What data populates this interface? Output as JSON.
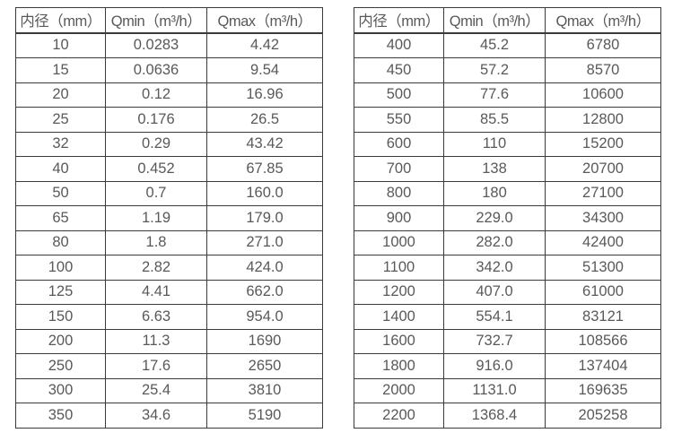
{
  "page": {
    "background": "#ffffff",
    "text_color": "#595959",
    "border_color": "#3b3b3b"
  },
  "chart_data": [
    {
      "type": "table",
      "title": "",
      "headers": [
        "内径（mm）",
        "Qmin（m³/h）",
        "Qmax（m³/h）"
      ],
      "rows": [
        [
          "10",
          "0.0283",
          "4.42"
        ],
        [
          "15",
          "0.0636",
          "9.54"
        ],
        [
          "20",
          "0.12",
          "16.96"
        ],
        [
          "25",
          "0.176",
          "26.5"
        ],
        [
          "32",
          "0.29",
          "43.42"
        ],
        [
          "40",
          "0.452",
          "67.85"
        ],
        [
          "50",
          "0.7",
          "160.0"
        ],
        [
          "65",
          "1.19",
          "179.0"
        ],
        [
          "80",
          "1.8",
          "271.0"
        ],
        [
          "100",
          "2.82",
          "424.0"
        ],
        [
          "125",
          "4.41",
          "662.0"
        ],
        [
          "150",
          "6.63",
          "954.0"
        ],
        [
          "200",
          "11.3",
          "1690"
        ],
        [
          "250",
          "17.6",
          "2650"
        ],
        [
          "300",
          "25.4",
          "3810"
        ],
        [
          "350",
          "34.6",
          "5190"
        ]
      ]
    },
    {
      "type": "table",
      "title": "",
      "headers": [
        "内径（mm）",
        "Qmin（m³/h）",
        "Qmax（m³/h）"
      ],
      "rows": [
        [
          "400",
          "45.2",
          "6780"
        ],
        [
          "450",
          "57.2",
          "8570"
        ],
        [
          "500",
          "77.6",
          "10600"
        ],
        [
          "550",
          "85.5",
          "12800"
        ],
        [
          "600",
          "110",
          "15200"
        ],
        [
          "700",
          "138",
          "20700"
        ],
        [
          "800",
          "180",
          "27100"
        ],
        [
          "900",
          "229.0",
          "34300"
        ],
        [
          "1000",
          "282.0",
          "42400"
        ],
        [
          "1100",
          "342.0",
          "51300"
        ],
        [
          "1200",
          "407.0",
          "61000"
        ],
        [
          "1400",
          "554.1",
          "83121"
        ],
        [
          "1600",
          "732.7",
          "108566"
        ],
        [
          "1800",
          "916.0",
          "137404"
        ],
        [
          "2000",
          "1131.0",
          "169635"
        ],
        [
          "2200",
          "1368.4",
          "205258"
        ]
      ]
    }
  ]
}
